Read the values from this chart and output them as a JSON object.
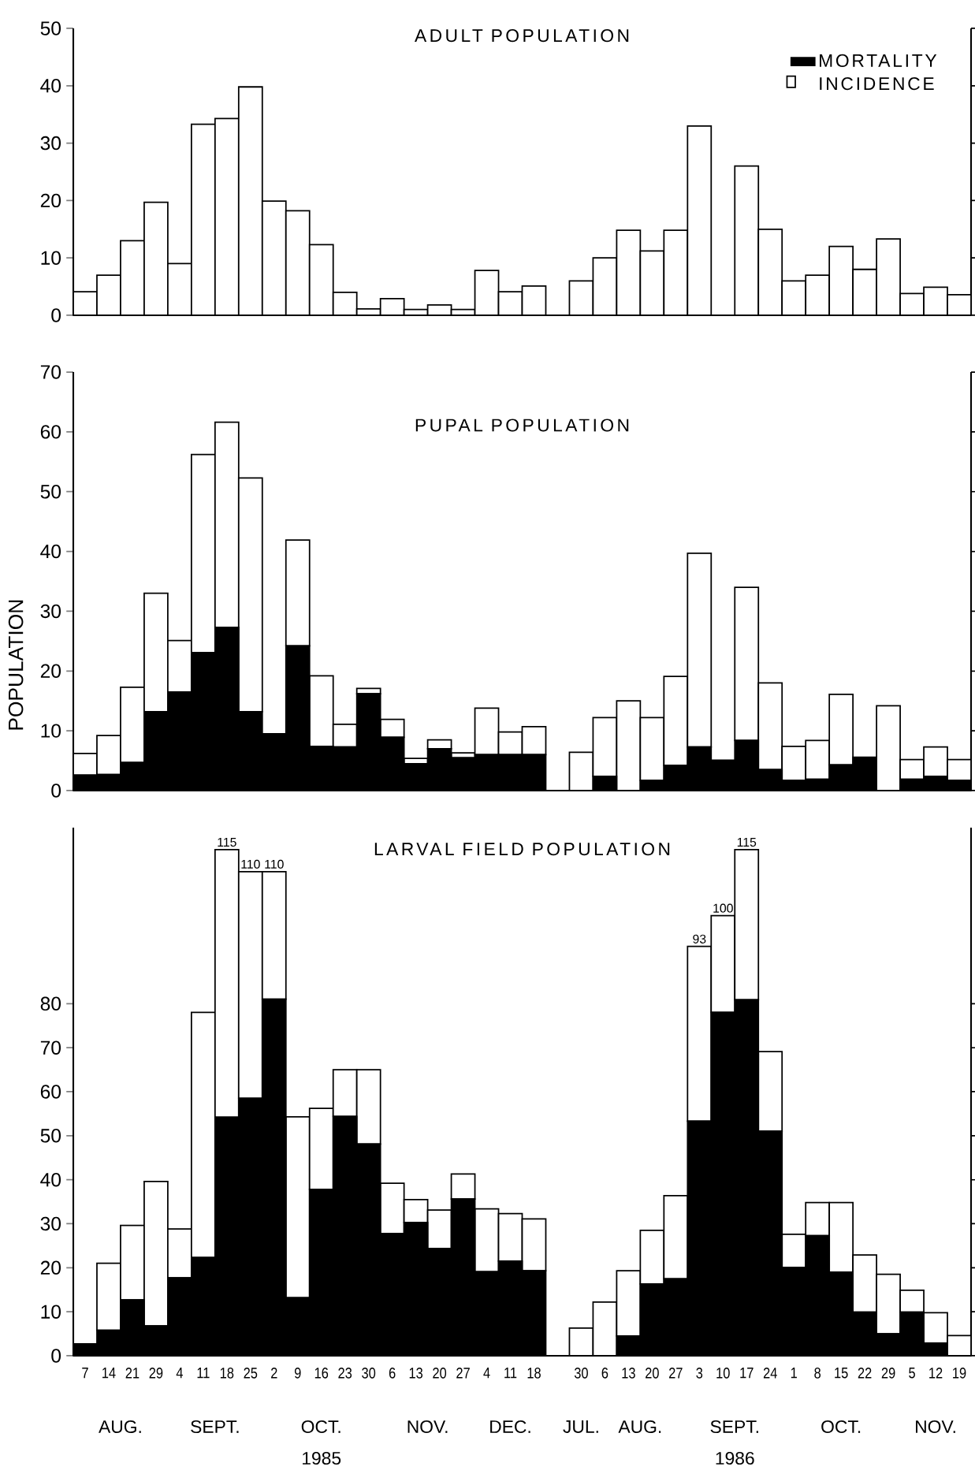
{
  "chart_data": [
    {
      "type": "bar",
      "title": "ADULT POPULATION",
      "stacked": true,
      "legend": "top right",
      "tick_labels": "y",
      "categories": [
        "7",
        "14",
        "21",
        "29",
        "4",
        "11",
        "18",
        "25",
        "2",
        "9",
        "16",
        "23",
        "30",
        "6",
        "13",
        "20",
        "27",
        "4",
        "11",
        "18",
        null,
        "30",
        "6",
        "13",
        "20",
        "27",
        "3",
        "10",
        "17",
        "24",
        "1",
        "8",
        "15",
        "22",
        "29",
        "5",
        "12",
        "19"
      ],
      "series": [
        {
          "name": "MORTALITY",
          "color": "#000000",
          "values": [
            null,
            null,
            null,
            null,
            null,
            null,
            null,
            null,
            null,
            null,
            null,
            null,
            null,
            null,
            null,
            null,
            null,
            null,
            null,
            null,
            null,
            null,
            null,
            null,
            null,
            null,
            null,
            null,
            null,
            null,
            null,
            null,
            null,
            null,
            null,
            null,
            null,
            null
          ]
        },
        {
          "name": "INCIDENCE",
          "color": "#ffffff",
          "values": [
            4.1,
            7,
            13,
            19.7,
            9,
            33.3,
            34.3,
            39.8,
            19.9,
            18.2,
            12.3,
            4,
            1.1,
            2.9,
            1,
            1.8,
            1,
            7.8,
            4.1,
            5.1,
            null,
            6,
            10,
            14.8,
            11.2,
            14.8,
            33,
            null,
            26,
            15,
            6,
            7,
            12,
            8,
            13.3,
            3.8,
            4.9,
            3.6
          ]
        }
      ],
      "ylim": [
        0,
        50
      ],
      "yticks": [
        0,
        10,
        20,
        30,
        40,
        50
      ]
    },
    {
      "type": "bar",
      "title": "PUPAL POPULATION",
      "ylabel": "POPULATION",
      "stacked": true,
      "tick_labels": "y",
      "categories": [
        "7",
        "14",
        "21",
        "29",
        "4",
        "11",
        "18",
        "25",
        "2",
        "9",
        "16",
        "23",
        "30",
        "6",
        "13",
        "20",
        "27",
        "4",
        "11",
        "18",
        null,
        "30",
        "6",
        "13",
        "20",
        "27",
        "3",
        "10",
        "17",
        "24",
        "1",
        "8",
        "15",
        "22",
        "29",
        "5",
        "12",
        "19"
      ],
      "series": [
        {
          "color": "#000000",
          "values": [
            2.6,
            2.7,
            4.7,
            13.2,
            16.5,
            23.1,
            27.3,
            13.2,
            9.5,
            24.2,
            7.4,
            7.3,
            16.2,
            8.9,
            4.5,
            7,
            5.5,
            6,
            6,
            6,
            null,
            0,
            2.4,
            0,
            1.7,
            4.2,
            7.3,
            5.1,
            8.4,
            3.5,
            1.7,
            1.9,
            4.3,
            5.6,
            0,
            1.9,
            2.4,
            1.7
          ]
        },
        {
          "color": "#ffffff",
          "values": [
            3.6,
            6.5,
            12.6,
            19.8,
            8.6,
            33.1,
            34.3,
            39.1,
            0,
            17.7,
            11.8,
            3.8,
            0.9,
            3,
            0.9,
            1.5,
            0.8,
            7.8,
            3.8,
            4.7,
            null,
            6.4,
            9.8,
            15,
            10.5,
            14.9,
            32.4,
            0,
            25.6,
            14.5,
            5.7,
            6.5,
            11.8,
            0,
            14.2,
            3.3,
            4.9,
            3.5
          ]
        }
      ],
      "ylim": [
        0,
        70
      ],
      "yticks": [
        0,
        10,
        20,
        30,
        40,
        50,
        60,
        70
      ]
    },
    {
      "type": "bar",
      "title": "LARVAL FIELD POPULATION",
      "stacked": true,
      "categories": [
        "7",
        "14",
        "21",
        "29",
        "4",
        "11",
        "18",
        "25",
        "2",
        "9",
        "16",
        "23",
        "30",
        "6",
        "13",
        "20",
        "27",
        "4",
        "11",
        "18",
        null,
        "30",
        "6",
        "13",
        "20",
        "27",
        "3",
        "10",
        "17",
        "24",
        "1",
        "8",
        "15",
        "22",
        "29",
        "5",
        "12",
        "19"
      ],
      "series": [
        {
          "color": "#000000",
          "values": [
            2.7,
            5.8,
            12.7,
            6.8,
            17.7,
            22.3,
            54.2,
            58.5,
            81,
            13.2,
            37.8,
            54.4,
            48.1,
            27.8,
            30.3,
            24.4,
            35.6,
            19.1,
            21.5,
            19.3,
            null,
            0,
            0,
            4.5,
            16.3,
            17.5,
            53.3,
            78,
            80.9,
            51,
            20.1,
            27.3,
            19,
            9.9,
            5,
            9.9,
            2.9,
            0
          ]
        },
        {
          "color": "#ffffff",
          "values": [
            0,
            15.2,
            16.9,
            32.8,
            11.1,
            55.7,
            60.8,
            51.5,
            29,
            41.1,
            18.4,
            10.6,
            16.9,
            11.4,
            5.2,
            8.7,
            5.7,
            14.3,
            10.8,
            11.8,
            null,
            6.3,
            12.2,
            14.8,
            12.2,
            18.9,
            39.7,
            22,
            34.1,
            18.1,
            7.5,
            7.5,
            15.8,
            13,
            13.5,
            5,
            6.9,
            4.6
          ]
        }
      ],
      "totals": [
        null,
        null,
        null,
        null,
        null,
        null,
        "115",
        "110",
        "110",
        null,
        null,
        null,
        null,
        null,
        null,
        null,
        null,
        null,
        null,
        null,
        null,
        null,
        null,
        null,
        null,
        null,
        "93",
        "100",
        "115",
        null,
        null,
        null,
        null,
        null,
        null,
        null,
        null,
        null
      ],
      "ylim": [
        0,
        120
      ],
      "yticks": [
        0,
        10,
        20,
        30,
        40,
        50,
        60,
        70,
        80
      ],
      "annotations": [
        "AUG.",
        "SEPT.",
        "OCT.",
        "NOV.",
        "DEC.",
        "1985",
        "JUL.",
        "AUG.",
        "SEPT.",
        "OCT.",
        "NOV.",
        "1986"
      ]
    }
  ]
}
